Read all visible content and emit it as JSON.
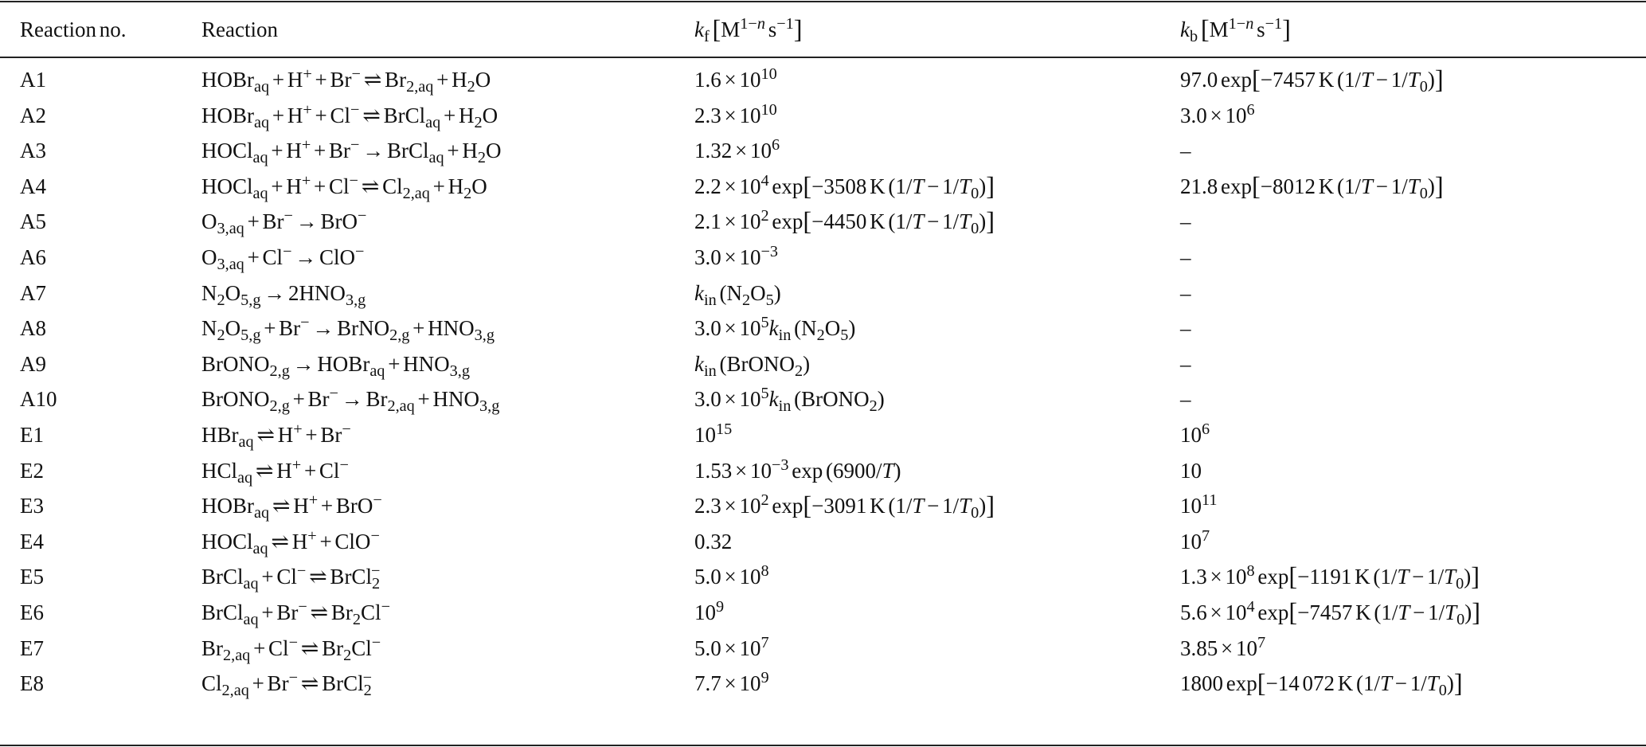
{
  "table": {
    "headers": [
      "Reaction no.",
      "Reaction",
      "*{k}_{f} [M^{1−*{n}} s^{−1}]",
      "*{k}_{b} [M^{1−*{n}} s^{−1}]"
    ],
    "rows": [
      [
        "A1",
        "HOBr_{aq} + H^{+} + Br^{−} ⇌ Br_{2,aq} + H_{2}O",
        "1.6 × 10^{10}",
        "97.0 exp[−7457 K (1/*{T} − 1/*{T}_{0})]"
      ],
      [
        "A2",
        "HOBr_{aq} + H^{+} + Cl^{−} ⇌ BrCl_{aq} + H_{2}O",
        "2.3 × 10^{10}",
        "3.0 × 10^{6}"
      ],
      [
        "A3",
        "HOCl_{aq} + H^{+} + Br^{−} → BrCl_{aq} + H_{2}O",
        "1.32 × 10^{6}",
        "–"
      ],
      [
        "A4",
        "HOCl_{aq} + H^{+} + Cl^{−} ⇌ Cl_{2,aq} + H_{2}O",
        "2.2 × 10^{4} exp[−3508 K (1/*{T} − 1/*{T}_{0})]",
        "21.8 exp[−8012 K (1/*{T} − 1/*{T}_{0})]"
      ],
      [
        "A5",
        "O_{3,aq} + Br^{−} → BrO^{−}",
        "2.1 × 10^{2} exp[−4450 K (1/*{T} − 1/*{T}_{0})]",
        "–"
      ],
      [
        "A6",
        "O_{3,aq} + Cl^{−} → ClO^{−}",
        "3.0 × 10^{−3}",
        "–"
      ],
      [
        "A7",
        "N_{2}O_{5,g} → 2HNO_{3,g}",
        "*{k}_{in} (N_{2}O_{5})",
        "–"
      ],
      [
        "A8",
        "N_{2}O_{5,g} + Br^{−} → BrNO_{2,g} + HNO_{3,g}",
        "3.0 × 10^{5}*{k}_{in} (N_{2}O_{5})",
        "–"
      ],
      [
        "A9",
        "BrONO_{2,g} → HOBr_{aq} + HNO_{3,g}",
        "*{k}_{in} (BrONO_{2})",
        "–"
      ],
      [
        "A10",
        "BrONO_{2,g} + Br^{−} → Br_{2,aq} + HNO_{3,g}",
        "3.0 × 10^{5}*{k}_{in} (BrONO_{2})",
        "–"
      ],
      [
        "E1",
        "HBr_{aq} ⇌ H^{+} + Br^{−}",
        "10^{15}",
        "10^{6}"
      ],
      [
        "E2",
        "HCl_{aq} ⇌ H^{+} + Cl^{−}",
        "1.53 × 10^{−3} exp (6900/*{T})",
        "10"
      ],
      [
        "E3",
        "HOBr_{aq} ⇌ H^{+} + BrO^{−}",
        "2.3 × 10^{2} exp[−3091 K (1/*{T} − 1/*{T}_{0})]",
        "10^{11}"
      ],
      [
        "E4",
        "HOCl_{aq} ⇌ H^{+} + ClO^{−}",
        "0.32",
        "10^{7}"
      ],
      [
        "E5",
        "BrCl_{aq} + Cl^{−} ⇌ BrCl={2|−}",
        "5.0 × 10^{8}",
        "1.3 × 10^{8} exp[−1191 K (1/*{T} − 1/*{T}_{0})]"
      ],
      [
        "E6",
        "BrCl_{aq} + Br^{−} ⇌ Br_{2}Cl^{−}",
        "10^{9}",
        "5.6 × 10^{4} exp[−7457 K (1/*{T} − 1/*{T}_{0})]"
      ],
      [
        "E7",
        "Br_{2,aq} + Cl^{−} ⇌ Br_{2}Cl^{−}",
        "5.0 × 10^{7}",
        "3.85 × 10^{7}"
      ],
      [
        "E8",
        "Cl_{2,aq} + Br^{−} ⇌ BrCl={2|−}",
        "7.7 × 10^{9}",
        "1800 exp[−14 072 K (1/*{T} − 1/*{T}_{0})]"
      ]
    ]
  }
}
